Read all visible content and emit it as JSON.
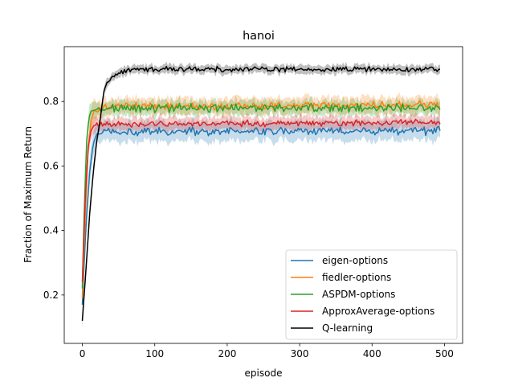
{
  "chart_data": {
    "type": "line",
    "title": "hanoi",
    "xlabel": "episode",
    "ylabel": "Fraction of Maximum Return",
    "xlim": [
      -25,
      525
    ],
    "ylim": [
      0.05,
      0.97
    ],
    "xticks": [
      0,
      100,
      200,
      300,
      400,
      500
    ],
    "yticks": [
      0.2,
      0.4,
      0.6,
      0.8
    ],
    "grid": false,
    "legend": "lower-right",
    "x_end": 495,
    "series": [
      {
        "name": "eigen-options",
        "color": "#1f77b4",
        "points": [
          [
            0,
            0.17
          ],
          [
            5,
            0.42
          ],
          [
            10,
            0.58
          ],
          [
            15,
            0.67
          ],
          [
            20,
            0.7
          ],
          [
            30,
            0.705
          ],
          [
            60,
            0.705
          ],
          [
            500,
            0.71
          ]
        ],
        "band": 0.03,
        "noise": 0.008
      },
      {
        "name": "fiedler-options",
        "color": "#ff7f0e",
        "points": [
          [
            0,
            0.19
          ],
          [
            4,
            0.45
          ],
          [
            8,
            0.65
          ],
          [
            12,
            0.74
          ],
          [
            16,
            0.77
          ],
          [
            25,
            0.78
          ],
          [
            60,
            0.785
          ],
          [
            500,
            0.79
          ]
        ],
        "band": 0.025,
        "noise": 0.007
      },
      {
        "name": "ASPDM-options",
        "color": "#2ca02c",
        "points": [
          [
            0,
            0.22
          ],
          [
            3,
            0.5
          ],
          [
            6,
            0.68
          ],
          [
            9,
            0.75
          ],
          [
            12,
            0.77
          ],
          [
            20,
            0.775
          ],
          [
            60,
            0.78
          ],
          [
            500,
            0.78
          ]
        ],
        "band": 0.022,
        "noise": 0.008
      },
      {
        "name": "ApproxAverage-options",
        "color": "#d62728",
        "points": [
          [
            0,
            0.24
          ],
          [
            4,
            0.5
          ],
          [
            8,
            0.66
          ],
          [
            12,
            0.71
          ],
          [
            16,
            0.725
          ],
          [
            25,
            0.73
          ],
          [
            60,
            0.73
          ],
          [
            500,
            0.735
          ]
        ],
        "band": 0.02,
        "noise": 0.006
      },
      {
        "name": "Q-learning",
        "color": "#000000",
        "points": [
          [
            0,
            0.12
          ],
          [
            5,
            0.28
          ],
          [
            10,
            0.45
          ],
          [
            15,
            0.58
          ],
          [
            20,
            0.68
          ],
          [
            25,
            0.76
          ],
          [
            30,
            0.83
          ],
          [
            35,
            0.86
          ],
          [
            45,
            0.88
          ],
          [
            60,
            0.895
          ],
          [
            80,
            0.9
          ],
          [
            500,
            0.9
          ]
        ],
        "band": 0.013,
        "noise": 0.005
      }
    ]
  }
}
